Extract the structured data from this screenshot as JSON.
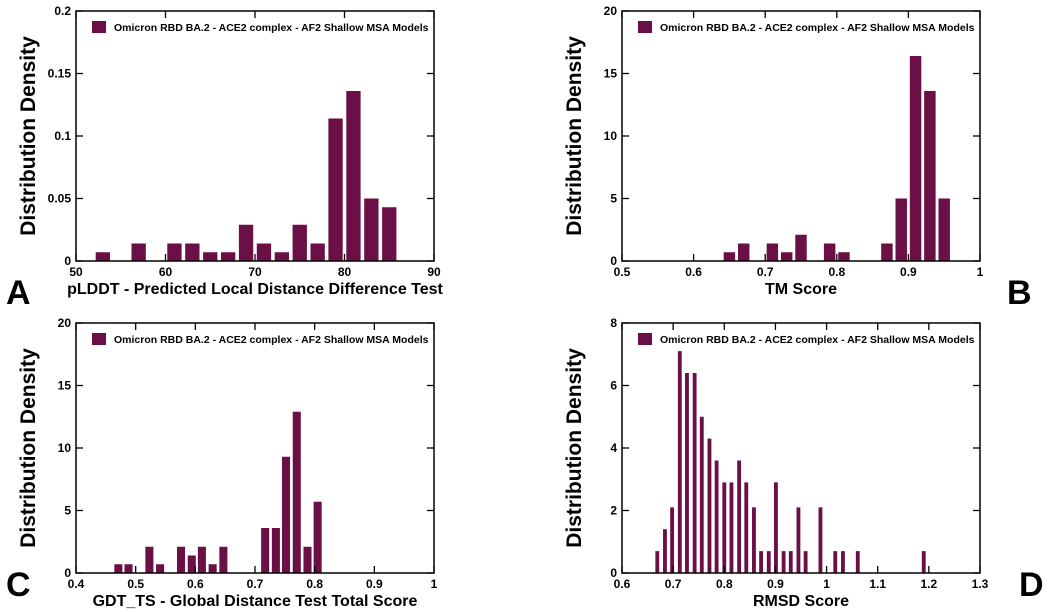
{
  "colors": {
    "bar": "#6b0f47",
    "axis": "#000000",
    "background": "#ffffff"
  },
  "chart_data": [
    {
      "panel": "A",
      "type": "bar",
      "legend": "Omicron RBD BA.2 - ACE2 complex - AF2 Shallow MSA Models",
      "legend_position": "top-left",
      "xlabel": "pLDDT - Predicted Local Distance Difference Test",
      "ylabel": "Distribution Density",
      "xlim": [
        50,
        90
      ],
      "ylim": [
        0,
        0.2
      ],
      "xticks": [
        50,
        60,
        70,
        80,
        90
      ],
      "xtick_labels": [
        "50",
        "60",
        "70",
        "80",
        "90"
      ],
      "yticks": [
        0,
        0.05,
        0.1,
        0.15,
        0.2
      ],
      "ytick_labels": [
        "0",
        "0.05",
        "0.1",
        "0.15",
        "0.2"
      ],
      "bar_width": 1.6,
      "x": [
        53,
        57,
        61,
        63,
        65,
        67,
        69,
        71,
        73,
        75,
        77,
        79,
        81,
        83,
        85
      ],
      "values": [
        0.007,
        0.014,
        0.014,
        0.014,
        0.007,
        0.007,
        0.029,
        0.014,
        0.007,
        0.029,
        0.014,
        0.114,
        0.136,
        0.05,
        0.043
      ]
    },
    {
      "panel": "B",
      "type": "bar",
      "legend": "Omicron RBD BA.2 - ACE2 complex - AF2 Shallow MSA Models",
      "legend_position": "top-left",
      "xlabel": "TM Score",
      "ylabel": "Distribution Density",
      "xlim": [
        0.5,
        1
      ],
      "ylim": [
        0,
        20
      ],
      "xticks": [
        0.5,
        0.6,
        0.7,
        0.8,
        0.9,
        1
      ],
      "xtick_labels": [
        "0.5",
        "0.6",
        "0.7",
        "0.8",
        "0.9",
        "1"
      ],
      "yticks": [
        0,
        5,
        10,
        15,
        20
      ],
      "ytick_labels": [
        "0",
        "5",
        "10",
        "15",
        "20"
      ],
      "bar_width": 0.016,
      "x": [
        0.65,
        0.67,
        0.71,
        0.73,
        0.75,
        0.79,
        0.81,
        0.87,
        0.89,
        0.91,
        0.93,
        0.95
      ],
      "values": [
        0.7,
        1.4,
        1.4,
        0.7,
        2.1,
        1.4,
        0.7,
        1.4,
        5.0,
        16.4,
        13.6,
        5.0
      ]
    },
    {
      "panel": "C",
      "type": "bar",
      "legend": "Omicron RBD BA.2 - ACE2 complex - AF2 Shallow MSA Models",
      "legend_position": "top-left",
      "xlabel": "GDT_TS - Global Distance Test Total Score",
      "ylabel": "Distribution Density",
      "xlim": [
        0.4,
        1
      ],
      "ylim": [
        0,
        20
      ],
      "xticks": [
        0.4,
        0.5,
        0.6,
        0.7,
        0.8,
        0.9,
        1
      ],
      "xtick_labels": [
        "0.4",
        "0.5",
        "0.6",
        "0.7",
        "0.8",
        "0.9",
        "1"
      ],
      "yticks": [
        0,
        5,
        10,
        15,
        20
      ],
      "ytick_labels": [
        "0",
        "5",
        "10",
        "15",
        "20"
      ],
      "bar_width": 0.0135,
      "x": [
        0.471,
        0.488,
        0.523,
        0.541,
        0.576,
        0.594,
        0.611,
        0.629,
        0.647,
        0.717,
        0.735,
        0.752,
        0.77,
        0.788,
        0.805
      ],
      "values": [
        0.7,
        0.7,
        2.1,
        0.7,
        2.1,
        1.4,
        2.1,
        0.7,
        2.1,
        3.6,
        3.6,
        9.3,
        12.9,
        2.1,
        5.7
      ]
    },
    {
      "panel": "D",
      "type": "bar",
      "legend": "Omicron RBD BA.2 - ACE2 complex - AF2 Shallow MSA Models",
      "legend_position": "top-left",
      "xlabel": "RMSD Score",
      "ylabel": "Distribution Density",
      "xlim": [
        0.6,
        1.3
      ],
      "ylim": [
        0,
        8
      ],
      "xticks": [
        0.6,
        0.7,
        0.8,
        0.9,
        1.0,
        1.1,
        1.2,
        1.3
      ],
      "xtick_labels": [
        "0.6",
        "0.7",
        "0.8",
        "0.9",
        "1",
        "1.1",
        "1.2",
        "1.3"
      ],
      "yticks": [
        0,
        2,
        4,
        6,
        8
      ],
      "ytick_labels": [
        "0",
        "2",
        "4",
        "6",
        "8"
      ],
      "bar_width": 0.0075,
      "x": [
        0.669,
        0.684,
        0.698,
        0.713,
        0.727,
        0.742,
        0.756,
        0.771,
        0.785,
        0.8,
        0.814,
        0.829,
        0.843,
        0.858,
        0.872,
        0.887,
        0.901,
        0.916,
        0.93,
        0.945,
        0.959,
        0.988,
        1.017,
        1.032,
        1.061,
        1.19
      ],
      "values": [
        0.7,
        1.4,
        2.1,
        7.1,
        6.4,
        6.4,
        5.0,
        4.3,
        3.6,
        2.9,
        2.9,
        3.6,
        2.9,
        2.1,
        0.7,
        0.7,
        2.9,
        0.7,
        0.7,
        2.1,
        0.7,
        2.1,
        0.7,
        0.7,
        0.7,
        0.7
      ]
    }
  ]
}
